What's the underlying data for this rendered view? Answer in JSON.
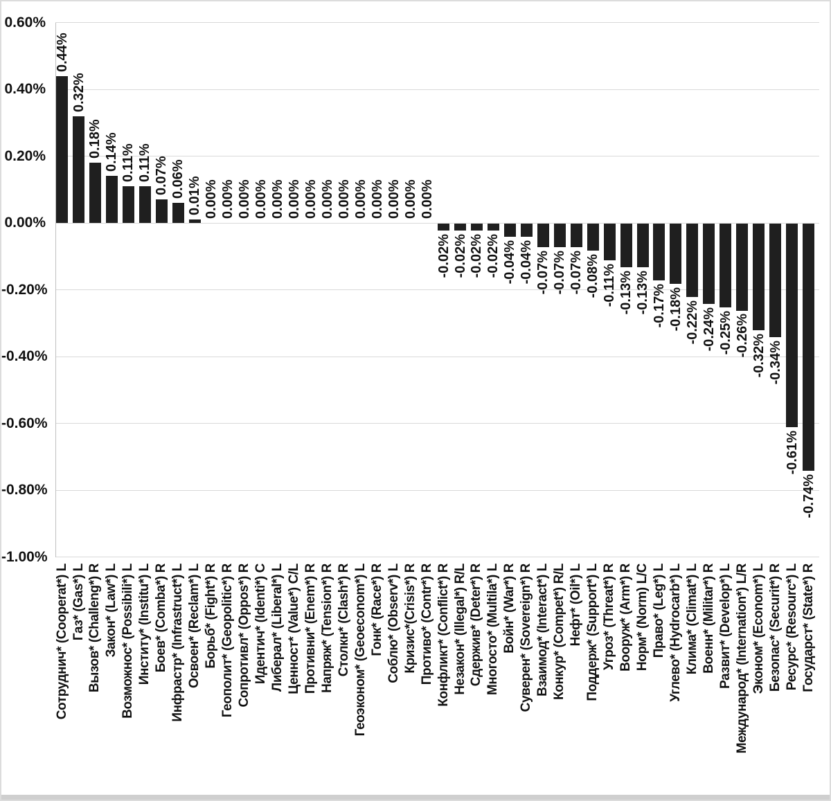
{
  "chart_data": {
    "type": "bar",
    "title": "",
    "xlabel": "",
    "ylabel": "",
    "grid": true,
    "legend": false,
    "ylim": [
      -1.0,
      0.6
    ],
    "categories": [
      "Сотруднич* (Cooperat*) L",
      "Газ* (Gas*) L",
      "Вызов* (Challeng*) R",
      "Закон* (Law*) L",
      "Возможнос* (Possibili*) L",
      "Институ* (Institu*) L",
      "Боев* (Comba*) R",
      "Инфрастр* (Infrastruct*) L",
      "Освоен* (Reclam*) L",
      "Борьб* (Fight*) R",
      "Геополит* (Geopolitic*) R",
      "Сопротивл* (Oppos*) R",
      "Идентич* (Identi*) C",
      "Либерал* (Liberal*) L",
      "Ценност* (Value*) C/L",
      "Противни* (Enem*) R",
      "Напряж* (Tension*) R",
      "Столкн* (Clash*) R",
      "Геоэконом* (Geoeconom*) L",
      "Гонк* (Race*) R",
      "Соблю* (Observ*) L",
      "Кризис*(Crisis*) R",
      "Противо* (Contr*) R",
      "Конфликт* (Conflict*) R",
      "Незакон* (Illegal*) R/L",
      "Сдержив* (Deter*) R",
      "Многосто* (Multila*) L",
      "Войн* (War*) R",
      "Суверен* (Sovereign*) R",
      "Взаимод* (Interact*) L",
      "Конкур* (Compet*) R/L",
      "Нефт* (Oil*) L",
      "Поддерж* (Support*) L",
      "Угроз* (Threat*) R",
      "Вооруж* (Arm*) R",
      "Норм* (Norm) L/C",
      "Право* (Leg*) L",
      "Углево* (Hydrocarb*) L",
      "Клима* (Climat*) L",
      "Военн* (Militar*) R",
      "Развит* (Develop*) L",
      "Международ* (Internation*) L/R",
      "Эконом* (Econom*) L",
      "Безопас* (Securit*) R",
      "Ресурс* (Resourc*) L",
      "Государст* (State*) R"
    ],
    "values": [
      0.44,
      0.32,
      0.18,
      0.14,
      0.11,
      0.11,
      0.07,
      0.06,
      0.01,
      0,
      0,
      0,
      0,
      0,
      0,
      0,
      0,
      0,
      0,
      0,
      0,
      0,
      0,
      -0.02,
      -0.02,
      -0.02,
      -0.02,
      -0.04,
      -0.04,
      -0.07,
      -0.07,
      -0.07,
      -0.08,
      -0.11,
      -0.13,
      -0.13,
      -0.17,
      -0.18,
      -0.22,
      -0.24,
      -0.25,
      -0.26,
      -0.32,
      -0.34,
      -0.61,
      -0.74
    ],
    "data_labels": [
      "0.44%",
      "0.32%",
      "0.18%",
      "0.14%",
      "0.11%",
      "0.11%",
      "0.07%",
      "0.06%",
      "0.01%",
      "0.00%",
      "0.00%",
      "0.00%",
      "0.00%",
      "0.00%",
      "0.00%",
      "0.00%",
      "0.00%",
      "0.00%",
      "0.00%",
      "0.00%",
      "0.00%",
      "0.00%",
      "0.00%",
      "-0.02%",
      "-0.02%",
      "-0.02%",
      "-0.02%",
      "-0.04%",
      "-0.04%",
      "-0.07%",
      "-0.07%",
      "-0.07%",
      "-0.08%",
      "-0.11%",
      "-0.13%",
      "-0.13%",
      "-0.17%",
      "-0.18%",
      "-0.22%",
      "-0.24%",
      "-0.25%",
      "-0.26%",
      "-0.32%",
      "-0.34%",
      "-0.61%",
      "-0.74%"
    ],
    "y_axis": {
      "tick_labels": [
        "0.60%",
        "0.40%",
        "0.20%",
        "0.00%",
        "-0.20%",
        "-0.40%",
        "-0.60%",
        "-0.80%",
        "-1.00%"
      ],
      "tick_values": [
        0.6,
        0.4,
        0.2,
        0,
        -0.2,
        -0.4,
        -0.6,
        -0.8,
        -1.0
      ]
    },
    "colors": {
      "bar": "#1f1f1f",
      "gridline": "#d9d9d9",
      "axis_line": "#bfbfbf",
      "text": "#111111",
      "frame_strip": "#cfcfcf"
    }
  }
}
